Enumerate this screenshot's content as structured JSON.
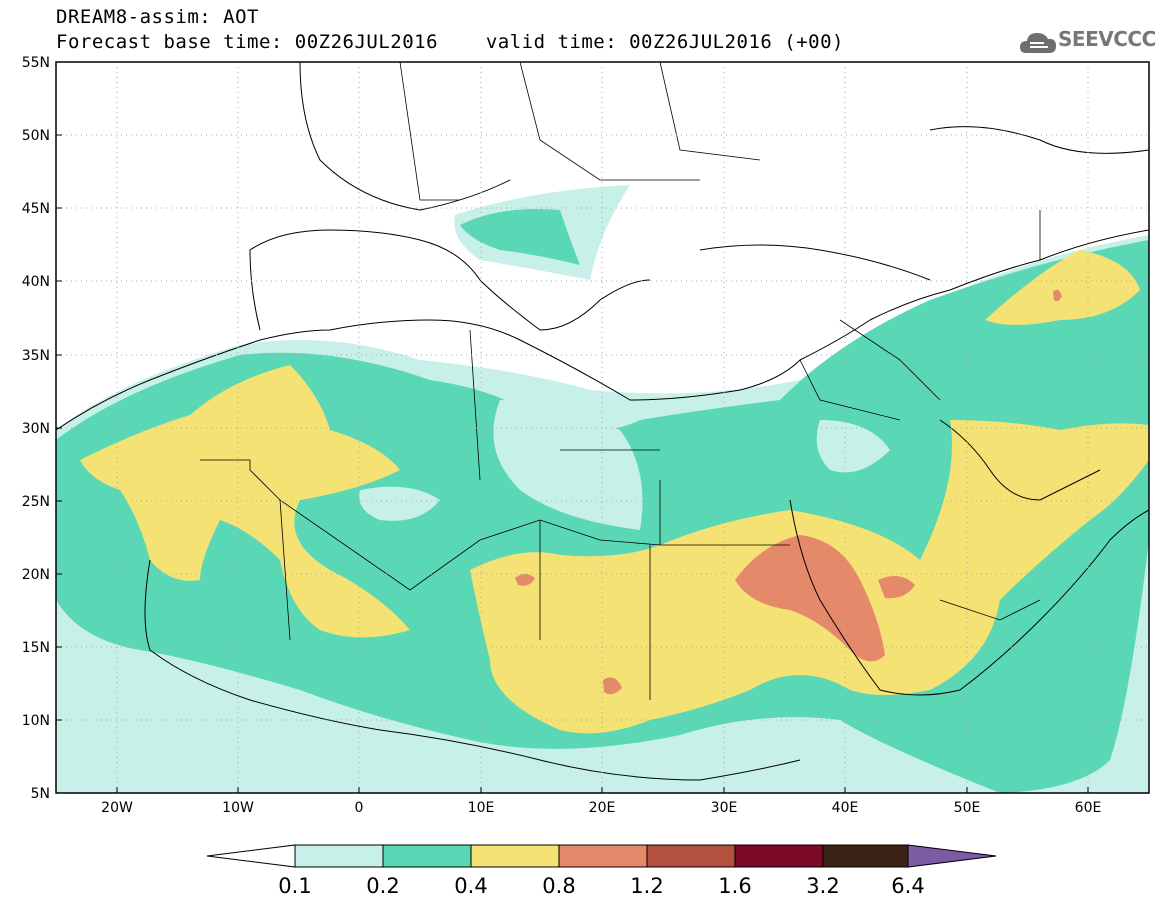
{
  "header": {
    "title": "DREAM8-assim: AOT",
    "base_label": "Forecast base time: 00Z26JUL2016",
    "valid_label": "valid time: 00Z26JUL2016 (+00)"
  },
  "logo": {
    "text": "SEEVCCC",
    "icon": "cloud-icon"
  },
  "axes": {
    "lat_labels": [
      "55N",
      "50N",
      "45N",
      "40N",
      "35N",
      "30N",
      "25N",
      "20N",
      "15N",
      "10N",
      "5N"
    ],
    "lon_labels": [
      "20W",
      "10W",
      "0",
      "10E",
      "20E",
      "30E",
      "40E",
      "50E",
      "60E"
    ]
  },
  "colorbar": {
    "labels": [
      "0.1",
      "0.2",
      "0.4",
      "0.8",
      "1.2",
      "1.6",
      "3.2",
      "6.4"
    ],
    "colors": [
      "#ffffff",
      "#c6f0e8",
      "#5ad8b6",
      "#f4e274",
      "#e4896a",
      "#b4513e",
      "#7a0a26",
      "#3a2314",
      "#7b5ba3"
    ]
  }
}
